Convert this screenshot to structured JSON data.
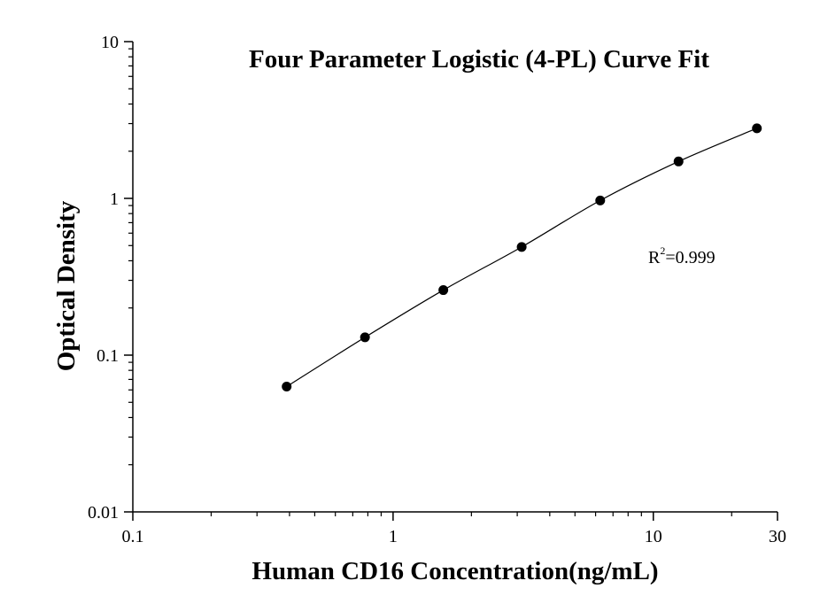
{
  "chart_data": {
    "type": "scatter",
    "title": "Four Parameter Logistic (4-PL) Curve Fit",
    "xlabel": "Human CD16 Concentration(ng/mL)",
    "ylabel": "Optical Density",
    "x_scale": "log",
    "y_scale": "log",
    "xlim": [
      0.1,
      30
    ],
    "ylim": [
      0.01,
      10
    ],
    "x_ticks": [
      "0.1",
      "1",
      "10",
      "30"
    ],
    "x_tick_values": [
      0.1,
      1,
      10,
      30
    ],
    "y_ticks": [
      "0.01",
      "0.1",
      "1",
      "10"
    ],
    "y_tick_values": [
      0.01,
      0.1,
      1,
      10
    ],
    "grid": false,
    "series": [
      {
        "x": [
          0.39,
          0.78,
          1.56,
          3.12,
          6.25,
          12.5,
          25
        ],
        "y": [
          0.063,
          0.13,
          0.26,
          0.49,
          0.97,
          1.72,
          2.8
        ]
      }
    ],
    "annotation": {
      "base": "R",
      "sup": "2",
      "rest": "=0.999"
    }
  }
}
